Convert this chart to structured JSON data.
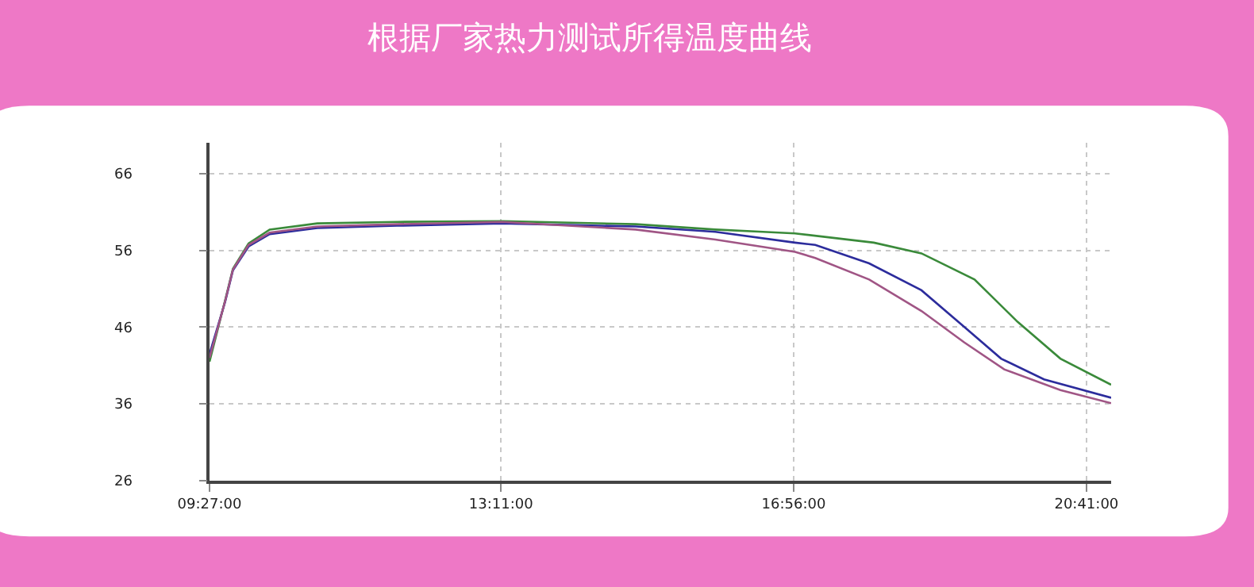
{
  "chart_data": {
    "type": "line",
    "title": "根据厂家热力测试所得温度曲线",
    "xlim": [
      9.45,
      21.0
    ],
    "xticks": [
      {
        "value": 9.45,
        "label": "09:27:00"
      },
      {
        "value": 13.1833,
        "label": "13:11:00"
      },
      {
        "value": 16.9333,
        "label": "16:56:00"
      },
      {
        "value": 20.6833,
        "label": "20:41:00"
      }
    ],
    "ylim": [
      26,
      70
    ],
    "yticks": [
      26,
      36,
      46,
      56,
      66
    ],
    "grid": true,
    "marker": "none",
    "line_style": "solid",
    "series": [
      {
        "color": "#3a8a3a",
        "x": [
          9.45,
          9.65,
          9.75,
          9.95,
          10.22,
          10.83,
          11.85,
          13.2,
          14.91,
          15.93,
          16.54,
          16.95,
          17.96,
          18.57,
          19.25,
          19.8,
          20.35,
          21.0
        ],
        "values": [
          41.5,
          49.5,
          53.6,
          56.9,
          58.7,
          59.5,
          59.7,
          59.8,
          59.4,
          58.7,
          58.4,
          58.2,
          57.0,
          55.6,
          52.2,
          46.7,
          41.9,
          38.5
        ]
      },
      {
        "color": "#2c2c9c",
        "x": [
          9.45,
          9.65,
          9.75,
          9.95,
          10.22,
          10.83,
          11.85,
          13.2,
          14.91,
          15.93,
          16.95,
          17.21,
          17.9,
          18.57,
          19.12,
          19.59,
          20.14,
          21.0
        ],
        "values": [
          42.5,
          49.3,
          53.4,
          56.5,
          58.1,
          58.9,
          59.2,
          59.5,
          59.1,
          58.4,
          57.0,
          56.7,
          54.3,
          50.8,
          46.0,
          41.9,
          39.2,
          36.8
        ]
      },
      {
        "color": "#a05585",
        "x": [
          9.45,
          9.65,
          9.75,
          9.95,
          10.22,
          10.83,
          11.85,
          13.2,
          14.91,
          15.93,
          16.95,
          17.21,
          17.9,
          18.57,
          19.12,
          19.63,
          20.35,
          21.0
        ],
        "values": [
          42.0,
          49.4,
          53.5,
          56.7,
          58.3,
          59.1,
          59.4,
          59.7,
          58.7,
          57.4,
          55.8,
          55.0,
          52.2,
          48.1,
          44.0,
          40.5,
          37.8,
          36.1
        ]
      }
    ]
  }
}
